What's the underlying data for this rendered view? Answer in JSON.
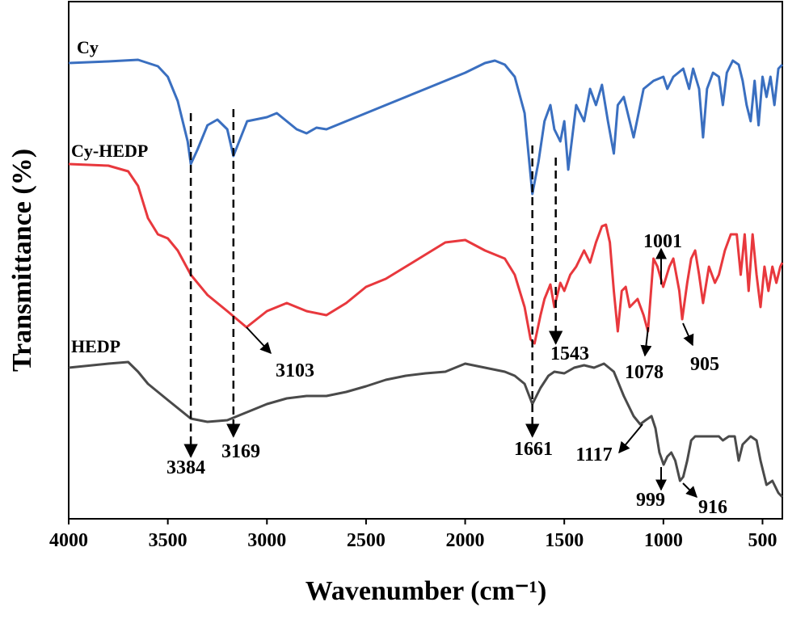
{
  "chart_data": {
    "type": "line",
    "x_label": "Wavenumber (cm⁻¹)",
    "y_label": "Transmittance (%)",
    "xlim": [
      4000,
      400
    ],
    "ylim": [
      0,
      640
    ],
    "xticks": [
      4000,
      3500,
      3000,
      2500,
      2000,
      1500,
      1000,
      500
    ],
    "series": [
      {
        "name": "Cy",
        "color": "#3a6fc0",
        "x": [
          4000,
          3800,
          3650,
          3550,
          3500,
          3450,
          3400,
          3384,
          3350,
          3300,
          3250,
          3200,
          3169,
          3140,
          3100,
          3000,
          2950,
          2900,
          2850,
          2800,
          2750,
          2700,
          2600,
          2500,
          2400,
          2300,
          2200,
          2100,
          2000,
          1900,
          1850,
          1800,
          1750,
          1700,
          1661,
          1630,
          1600,
          1570,
          1550,
          1520,
          1500,
          1480,
          1460,
          1440,
          1400,
          1370,
          1340,
          1310,
          1280,
          1250,
          1230,
          1200,
          1150,
          1100,
          1050,
          1000,
          980,
          950,
          900,
          870,
          850,
          820,
          800,
          780,
          750,
          720,
          700,
          680,
          650,
          620,
          600,
          580,
          560,
          540,
          520,
          500,
          480,
          460,
          440,
          420,
          400
        ],
        "values": [
          564,
          566,
          568,
          560,
          547,
          517,
          467,
          439,
          457,
          487,
          494,
          482,
          449,
          467,
          492,
          497,
          502,
          492,
          482,
          477,
          484,
          482,
          492,
          502,
          512,
          522,
          532,
          542,
          552,
          564,
          567,
          562,
          547,
          502,
          402,
          442,
          492,
          512,
          482,
          467,
          492,
          432,
          472,
          512,
          492,
          532,
          512,
          537,
          492,
          452,
          512,
          522,
          472,
          532,
          542,
          547,
          532,
          547,
          557,
          532,
          557,
          532,
          472,
          532,
          552,
          547,
          512,
          552,
          567,
          562,
          542,
          512,
          492,
          542,
          487,
          547,
          522,
          547,
          512,
          557,
          562
        ]
      },
      {
        "name": "Cy-HEDP",
        "color": "#e8383d",
        "x": [
          4000,
          3800,
          3700,
          3650,
          3600,
          3550,
          3500,
          3450,
          3384,
          3300,
          3200,
          3103,
          3000,
          2900,
          2800,
          2700,
          2600,
          2500,
          2400,
          2300,
          2200,
          2100,
          2000,
          1900,
          1800,
          1750,
          1700,
          1670,
          1650,
          1620,
          1600,
          1570,
          1550,
          1520,
          1500,
          1470,
          1440,
          1400,
          1370,
          1340,
          1310,
          1290,
          1270,
          1250,
          1230,
          1210,
          1190,
          1170,
          1130,
          1100,
          1078,
          1050,
          1030,
          1001,
          970,
          950,
          920,
          905,
          880,
          860,
          840,
          820,
          800,
          770,
          740,
          720,
          690,
          660,
          630,
          610,
          590,
          570,
          550,
          530,
          510,
          490,
          470,
          450,
          430,
          410,
          400
        ],
        "values": [
          439,
          437,
          430,
          412,
          372,
          352,
          347,
          332,
          302,
          277,
          257,
          237,
          257,
          267,
          257,
          252,
          267,
          287,
          297,
          312,
          327,
          342,
          345,
          332,
          322,
          302,
          262,
          222,
          217,
          252,
          272,
          290,
          262,
          292,
          282,
          302,
          312,
          332,
          317,
          342,
          362,
          364,
          342,
          282,
          232,
          282,
          287,
          262,
          272,
          252,
          232,
          322,
          312,
          287,
          312,
          322,
          282,
          247,
          292,
          322,
          332,
          302,
          267,
          312,
          292,
          302,
          332,
          352,
          352,
          302,
          352,
          282,
          352,
          302,
          262,
          312,
          282,
          312,
          292,
          312,
          317
        ]
      },
      {
        "name": "HEDP",
        "color": "#4a4a4a",
        "x": [
          4000,
          3800,
          3700,
          3650,
          3600,
          3500,
          3384,
          3300,
          3200,
          3100,
          3000,
          2900,
          2800,
          2700,
          2600,
          2500,
          2400,
          2300,
          2200,
          2100,
          2000,
          1900,
          1800,
          1750,
          1700,
          1661,
          1620,
          1580,
          1550,
          1500,
          1450,
          1400,
          1350,
          1300,
          1250,
          1200,
          1150,
          1117,
          1090,
          1060,
          1040,
          1020,
          999,
          980,
          960,
          940,
          916,
          900,
          880,
          860,
          840,
          800,
          760,
          720,
          700,
          670,
          640,
          620,
          600,
          560,
          530,
          510,
          480,
          450,
          420,
          400
        ],
        "values": [
          187,
          192,
          194,
          182,
          167,
          147,
          124,
          120,
          122,
          132,
          142,
          149,
          152,
          152,
          157,
          164,
          172,
          177,
          180,
          182,
          192,
          187,
          182,
          177,
          167,
          142,
          162,
          177,
          182,
          180,
          187,
          190,
          187,
          192,
          182,
          152,
          127,
          117,
          122,
          127,
          112,
          82,
          67,
          77,
          82,
          72,
          47,
          52,
          72,
          97,
          102,
          102,
          102,
          102,
          97,
          102,
          102,
          72,
          92,
          102,
          97,
          72,
          42,
          47,
          32,
          27
        ]
      }
    ],
    "annotations": [
      {
        "x": 3384,
        "dashed": true
      },
      {
        "x": 3169,
        "dashed": true
      },
      {
        "x": 3103
      },
      {
        "x": 1661,
        "dashed": true
      },
      {
        "x": 1543,
        "dashed": true
      },
      {
        "x": 1078
      },
      {
        "x": 905
      },
      {
        "x": 1001
      },
      {
        "x": 1117
      },
      {
        "x": 999
      },
      {
        "x": 916
      }
    ]
  }
}
